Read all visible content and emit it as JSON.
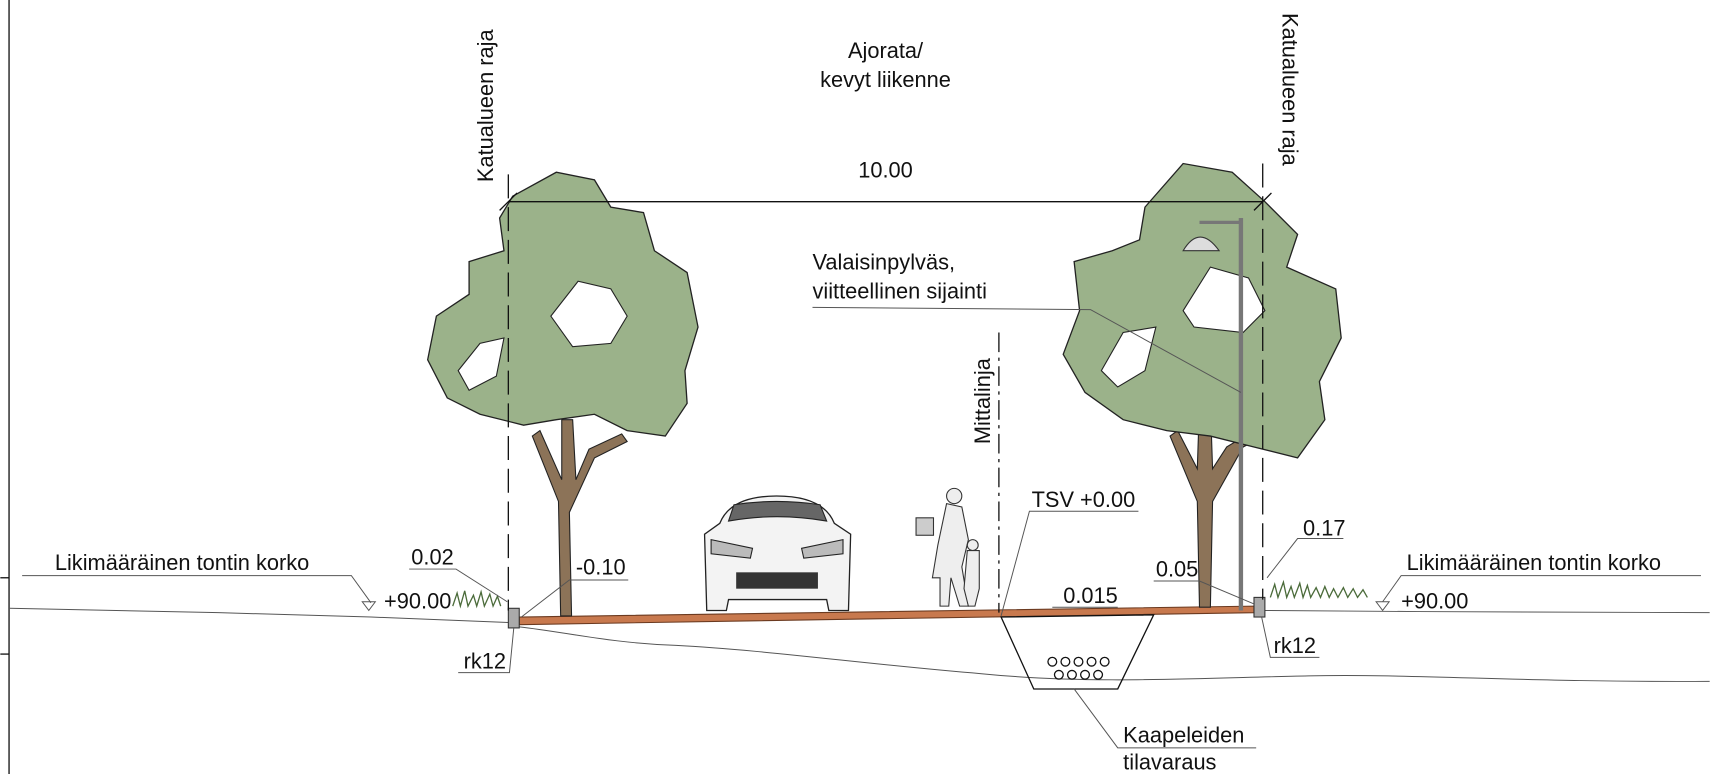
{
  "header": {
    "title_lines": [
      "Ajorata/",
      "kevyt liikenne"
    ]
  },
  "labels": {
    "boundary_left": "Katualueen raja",
    "boundary_right": "Katualueen raja",
    "width": "10.00",
    "lamp_lines": [
      "Valaisinpylväs,",
      "viitteellinen sijainti"
    ],
    "measure_line": "Mittalinja",
    "tsv": "TSV +0.00",
    "slope": "0.015",
    "level_road_left": "-0.10",
    "level_left": "0.02",
    "level_curb_right": "0.05",
    "level_right": "0.17",
    "plot_level_left": "Likimääräinen tontin korko",
    "plot_height_left": "+90.00",
    "plot_level_right": "Likimääräinen tontin korko",
    "plot_height_right": "+90.00",
    "curb_left": "rk12",
    "curb_right": "rk12",
    "cable_lines": [
      "Kaapeleiden",
      "tilavaraus"
    ]
  }
}
